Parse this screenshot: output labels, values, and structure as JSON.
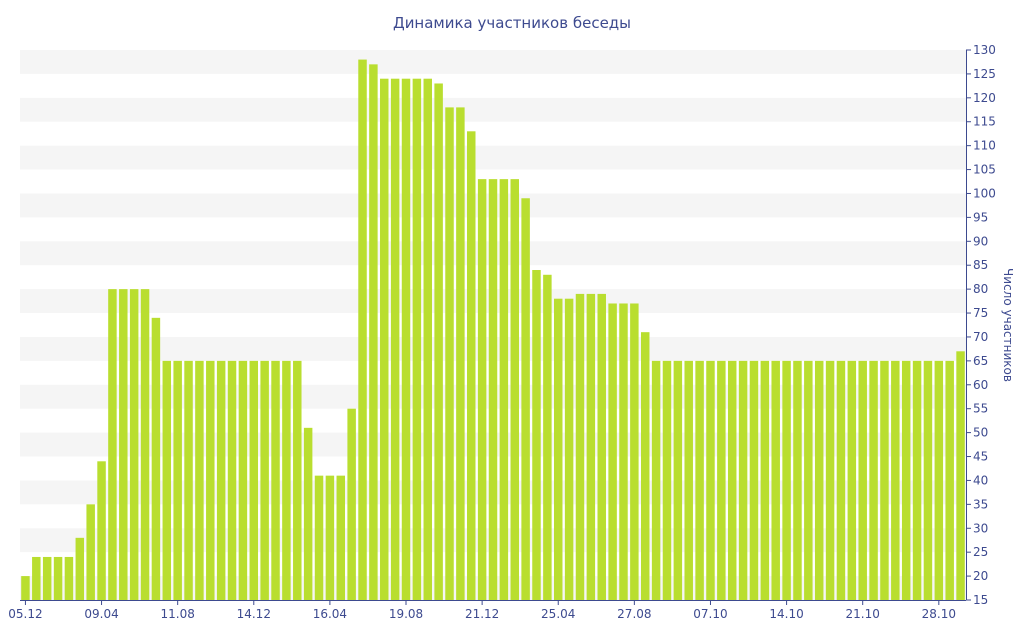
{
  "chart_data": {
    "type": "bar",
    "title": "Динамика участников беседы",
    "xlabel": "",
    "ylabel": "Число участников",
    "ylim": [
      15,
      130
    ],
    "y_ticks": [
      15,
      20,
      25,
      30,
      35,
      40,
      45,
      50,
      55,
      60,
      65,
      70,
      75,
      80,
      85,
      90,
      95,
      100,
      105,
      110,
      115,
      120,
      125,
      130
    ],
    "y_axis_position": "right",
    "grid": "horizontal alternating bands",
    "bar_color": "#b9de2f",
    "band_color": "#f5f5f5",
    "text_color": "#3d4a8f",
    "x_tick_labels": [
      {
        "label": "05.12",
        "index": 0
      },
      {
        "label": "09.04",
        "index": 7
      },
      {
        "label": "11.08",
        "index": 14
      },
      {
        "label": "14.12",
        "index": 21
      },
      {
        "label": "16.04",
        "index": 28
      },
      {
        "label": "19.08",
        "index": 35
      },
      {
        "label": "21.12",
        "index": 42
      },
      {
        "label": "25.04",
        "index": 49
      },
      {
        "label": "27.08",
        "index": 56
      },
      {
        "label": "07.10",
        "index": 63
      },
      {
        "label": "14.10",
        "index": 70
      },
      {
        "label": "21.10",
        "index": 77
      },
      {
        "label": "28.10",
        "index": 84
      }
    ],
    "values": [
      20,
      24,
      24,
      24,
      24,
      28,
      35,
      44,
      80,
      80,
      80,
      80,
      74,
      65,
      65,
      65,
      65,
      65,
      65,
      65,
      65,
      65,
      65,
      65,
      65,
      65,
      51,
      41,
      41,
      41,
      55,
      128,
      127,
      124,
      124,
      124,
      124,
      124,
      123,
      118,
      118,
      113,
      103,
      103,
      103,
      103,
      99,
      84,
      83,
      78,
      78,
      79,
      79,
      79,
      77,
      77,
      77,
      71,
      65,
      65,
      65,
      65,
      65,
      65,
      65,
      65,
      65,
      65,
      65,
      65,
      65,
      65,
      65,
      65,
      65,
      65,
      65,
      65,
      65,
      65,
      65,
      65,
      65,
      65,
      65,
      65,
      67
    ]
  }
}
